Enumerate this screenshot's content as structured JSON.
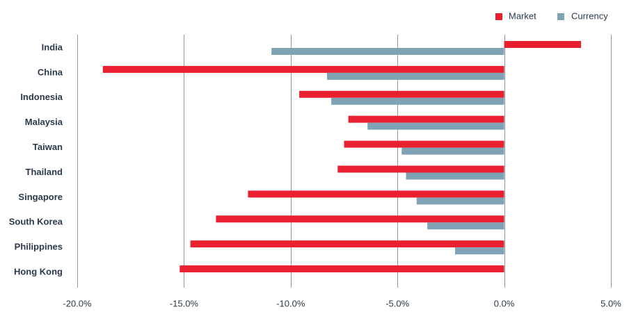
{
  "chart_data": {
    "type": "bar",
    "orientation": "horizontal",
    "categories": [
      "India",
      "China",
      "Indonesia",
      "Malaysia",
      "Taiwan",
      "Thailand",
      "Singapore",
      "South Korea",
      "Philippines",
      "Hong Kong"
    ],
    "series": [
      {
        "name": "Market",
        "color": "#e8202f",
        "values": [
          3.6,
          -18.8,
          -9.6,
          -7.3,
          -7.5,
          -7.8,
          -12.0,
          -13.5,
          -14.7,
          -15.2
        ]
      },
      {
        "name": "Currency",
        "color": "#7fa3b5",
        "values": [
          -10.9,
          -8.3,
          -8.1,
          -6.4,
          -4.8,
          -4.6,
          -4.1,
          -3.6,
          -2.3,
          0.0
        ]
      }
    ],
    "xlim": [
      -20,
      5
    ],
    "xticks": [
      -20,
      -15,
      -10,
      -5,
      0,
      5
    ],
    "xtick_labels": [
      "-20.0%",
      "-15.0%",
      "-10.0%",
      "-5.0%",
      "0.0%",
      "5.0%"
    ],
    "grid": "vertical",
    "legend_position": "top-right",
    "title": "",
    "xlabel": "",
    "ylabel": ""
  }
}
